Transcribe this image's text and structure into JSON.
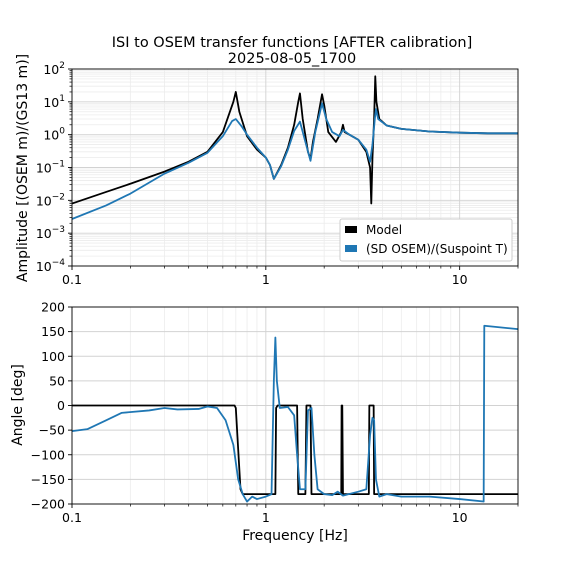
{
  "chart_data": {
    "type": "line",
    "title": "ISI to OSEM transfer functions [AFTER calibration]",
    "subtitle": "2025-08-05_1700",
    "xlabel": "Frequency [Hz]",
    "xscale": "log",
    "xlim": [
      0.1,
      20
    ],
    "x_ticks": [
      0.1,
      1,
      10
    ],
    "x_tick_labels": [
      "0.1",
      "1",
      "10"
    ],
    "grid": true,
    "legend": {
      "placement": "lower right of top panel",
      "entries": [
        {
          "label": "Model",
          "color": "#000000"
        },
        {
          "label": "(SD OSEM)/(Suspoint T)",
          "color": "#1f77b4"
        }
      ]
    },
    "panels": [
      {
        "id": "amplitude",
        "ylabel": "Amplitude [(OSEM m)/(GS13 m)]",
        "yscale": "log",
        "ylim": [
          0.0001,
          100
        ],
        "y_tick_exponents": [
          "−4",
          "−3",
          "−2",
          "−1",
          "0",
          "1",
          "2"
        ],
        "series": [
          {
            "name": "Model",
            "color": "#000000",
            "points": [
              [
                0.1,
                0.008
              ],
              [
                0.15,
                0.018
              ],
              [
                0.2,
                0.032
              ],
              [
                0.3,
                0.075
              ],
              [
                0.4,
                0.15
              ],
              [
                0.5,
                0.3
              ],
              [
                0.6,
                1.2
              ],
              [
                0.68,
                10
              ],
              [
                0.7,
                20
              ],
              [
                0.73,
                5
              ],
              [
                0.8,
                0.9
              ],
              [
                0.9,
                0.35
              ],
              [
                1.0,
                0.2
              ],
              [
                1.05,
                0.12
              ],
              [
                1.1,
                0.045
              ],
              [
                1.2,
                0.12
              ],
              [
                1.3,
                0.4
              ],
              [
                1.4,
                2
              ],
              [
                1.47,
                10
              ],
              [
                1.5,
                18
              ],
              [
                1.55,
                3
              ],
              [
                1.65,
                0.3
              ],
              [
                1.7,
                0.18
              ],
              [
                1.75,
                0.6
              ],
              [
                1.85,
                3
              ],
              [
                1.95,
                17
              ],
              [
                2.0,
                8
              ],
              [
                2.1,
                1.2
              ],
              [
                2.3,
                0.6
              ],
              [
                2.45,
                1.2
              ],
              [
                2.5,
                2
              ],
              [
                2.55,
                1.2
              ],
              [
                2.7,
                1
              ],
              [
                3.0,
                0.7
              ],
              [
                3.3,
                0.3
              ],
              [
                3.45,
                0.1
              ],
              [
                3.5,
                0.008
              ],
              [
                3.55,
                0.2
              ],
              [
                3.62,
                3
              ],
              [
                3.67,
                60
              ],
              [
                3.72,
                10
              ],
              [
                3.85,
                3
              ],
              [
                4.2,
                1.9
              ],
              [
                5,
                1.5
              ],
              [
                7,
                1.25
              ],
              [
                10,
                1.15
              ],
              [
                14,
                1.1
              ],
              [
                20,
                1.1
              ]
            ]
          },
          {
            "name": "(SD OSEM)/(Suspoint T)",
            "color": "#1f77b4",
            "points": [
              [
                0.1,
                0.0027
              ],
              [
                0.15,
                0.007
              ],
              [
                0.2,
                0.016
              ],
              [
                0.3,
                0.065
              ],
              [
                0.4,
                0.14
              ],
              [
                0.5,
                0.28
              ],
              [
                0.6,
                0.9
              ],
              [
                0.67,
                2.6
              ],
              [
                0.7,
                3
              ],
              [
                0.75,
                1.8
              ],
              [
                0.8,
                1.0
              ],
              [
                0.9,
                0.4
              ],
              [
                1.0,
                0.2
              ],
              [
                1.05,
                0.12
              ],
              [
                1.1,
                0.045
              ],
              [
                1.2,
                0.11
              ],
              [
                1.3,
                0.35
              ],
              [
                1.4,
                1.3
              ],
              [
                1.5,
                2.5
              ],
              [
                1.6,
                0.6
              ],
              [
                1.7,
                0.16
              ],
              [
                1.8,
                1.2
              ],
              [
                1.95,
                9
              ],
              [
                2.05,
                3
              ],
              [
                2.2,
                1.2
              ],
              [
                2.4,
                0.9
              ],
              [
                2.5,
                1.4
              ],
              [
                2.7,
                1.0
              ],
              [
                3.0,
                0.7
              ],
              [
                3.3,
                0.35
              ],
              [
                3.45,
                0.15
              ],
              [
                3.55,
                0.5
              ],
              [
                3.65,
                3
              ],
              [
                3.7,
                6
              ],
              [
                3.8,
                3
              ],
              [
                4.2,
                1.9
              ],
              [
                5,
                1.5
              ],
              [
                7,
                1.25
              ],
              [
                10,
                1.15
              ],
              [
                14,
                1.1
              ],
              [
                20,
                1.1
              ]
            ]
          }
        ]
      },
      {
        "id": "phase",
        "ylabel": "Angle [deg]",
        "yscale": "linear",
        "ylim": [
          -200,
          200
        ],
        "y_ticks": [
          -200,
          -150,
          -100,
          -50,
          0,
          50,
          100,
          150,
          200
        ],
        "y_tick_labels": [
          "−200",
          "−150",
          "−100",
          "−50",
          "0",
          "50",
          "100",
          "150",
          "200"
        ],
        "series": [
          {
            "name": "Model",
            "color": "#000000",
            "points": [
              [
                0.1,
                0
              ],
              [
                0.69,
                0
              ],
              [
                0.7,
                -5
              ],
              [
                0.74,
                -170
              ],
              [
                0.76,
                -180
              ],
              [
                1.12,
                -180
              ],
              [
                1.13,
                -5
              ],
              [
                1.15,
                0
              ],
              [
                1.45,
                0
              ],
              [
                1.47,
                -180
              ],
              [
                1.6,
                -180
              ],
              [
                1.62,
                0
              ],
              [
                1.7,
                0
              ],
              [
                1.72,
                -180
              ],
              [
                2.45,
                -180
              ],
              [
                2.46,
                0
              ],
              [
                2.48,
                0
              ],
              [
                2.5,
                -180
              ],
              [
                3.4,
                -180
              ],
              [
                3.42,
                0
              ],
              [
                3.6,
                0
              ],
              [
                3.62,
                -180
              ],
              [
                20,
                -180
              ]
            ]
          },
          {
            "name": "(SD OSEM)/(Suspoint T)",
            "color": "#1f77b4",
            "points": [
              [
                0.1,
                -52
              ],
              [
                0.12,
                -48
              ],
              [
                0.15,
                -30
              ],
              [
                0.18,
                -15
              ],
              [
                0.25,
                -10
              ],
              [
                0.3,
                -5
              ],
              [
                0.35,
                -8
              ],
              [
                0.45,
                -7
              ],
              [
                0.5,
                -2
              ],
              [
                0.56,
                -5
              ],
              [
                0.62,
                -30
              ],
              [
                0.68,
                -80
              ],
              [
                0.72,
                -150
              ],
              [
                0.76,
                -180
              ],
              [
                0.8,
                -195
              ],
              [
                0.85,
                -185
              ],
              [
                0.9,
                -190
              ],
              [
                1.0,
                -185
              ],
              [
                1.07,
                -180
              ],
              [
                1.1,
                50
              ],
              [
                1.12,
                138
              ],
              [
                1.14,
                50
              ],
              [
                1.18,
                -5
              ],
              [
                1.3,
                -3
              ],
              [
                1.4,
                -20
              ],
              [
                1.45,
                -100
              ],
              [
                1.5,
                -170
              ],
              [
                1.6,
                -170
              ],
              [
                1.65,
                -10
              ],
              [
                1.72,
                -5
              ],
              [
                1.78,
                -100
              ],
              [
                1.85,
                -170
              ],
              [
                2.0,
                -180
              ],
              [
                2.2,
                -182
              ],
              [
                2.35,
                -175
              ],
              [
                2.5,
                -183
              ],
              [
                3.0,
                -175
              ],
              [
                3.3,
                -170
              ],
              [
                3.45,
                -60
              ],
              [
                3.55,
                -25
              ],
              [
                3.62,
                -30
              ],
              [
                3.7,
                -150
              ],
              [
                3.85,
                -185
              ],
              [
                4.2,
                -180
              ],
              [
                5,
                -185
              ],
              [
                7,
                -185
              ],
              [
                10,
                -190
              ],
              [
                13.3,
                -195
              ],
              [
                13.4,
                162
              ],
              [
                20,
                155
              ]
            ]
          }
        ]
      }
    ]
  }
}
